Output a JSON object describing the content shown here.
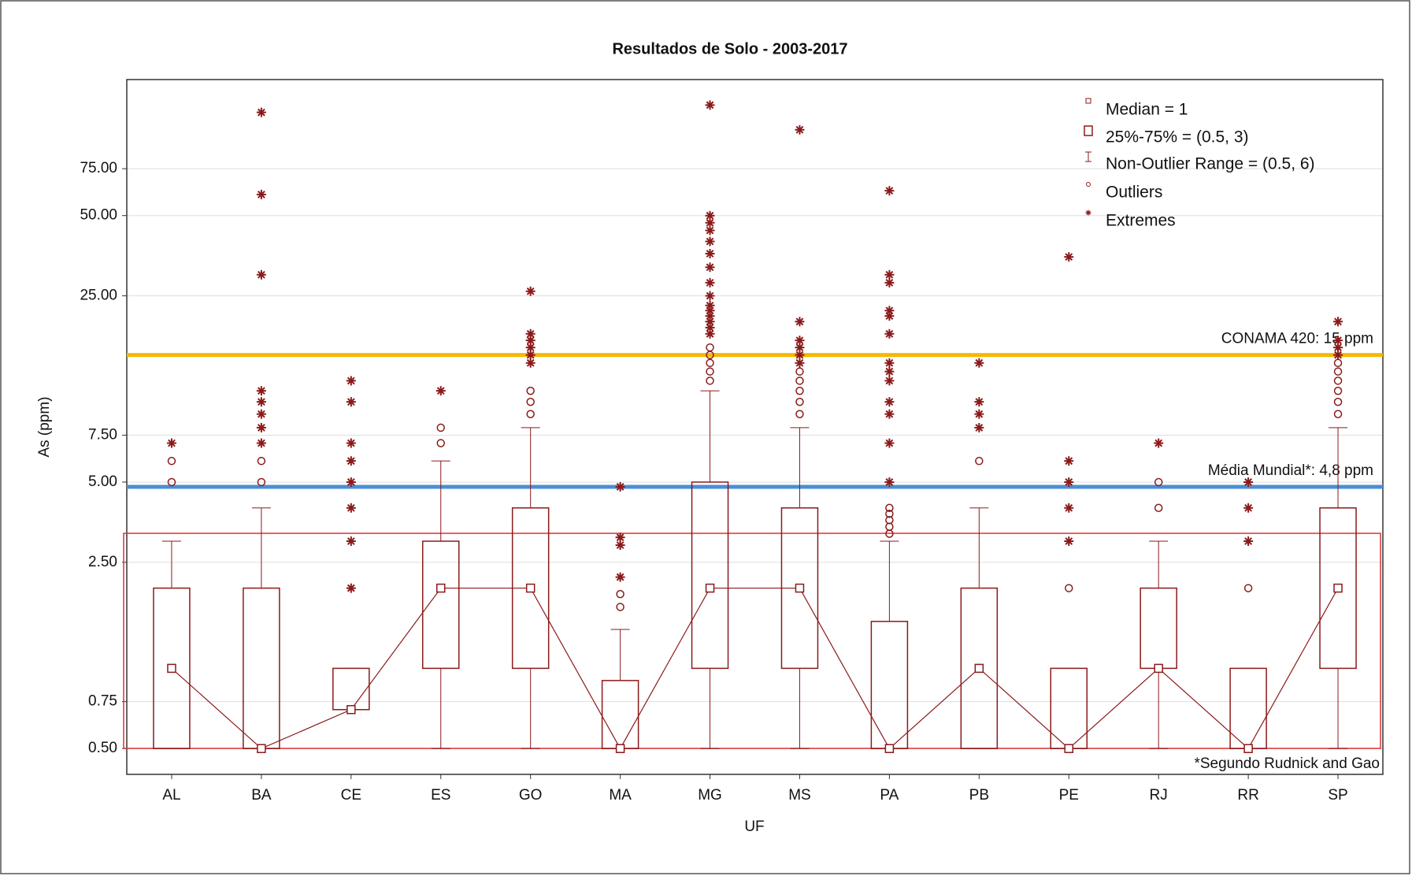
{
  "chart_data": {
    "type": "box",
    "title": "Resultados de Solo - 2003-2017",
    "x_label": "UF",
    "y_label": "As (ppm)",
    "log_y": true,
    "grid": true,
    "color": "#8b1a1a",
    "ylim": [
      0.4,
      162
    ],
    "yticks": [
      {
        "value": 0.5,
        "label": "0.50"
      },
      {
        "value": 0.75,
        "label": "0.75"
      },
      {
        "value": 2.5,
        "label": "2.50"
      },
      {
        "value": 5,
        "label": "5.00"
      },
      {
        "value": 7.5,
        "label": "7.50"
      },
      {
        "value": 25,
        "label": "25.00"
      },
      {
        "value": 50,
        "label": "50.00"
      },
      {
        "value": 75,
        "label": "75.00"
      }
    ],
    "categories": [
      "AL",
      "BA",
      "CE",
      "ES",
      "GO",
      "MA",
      "MG",
      "MS",
      "PA",
      "PB",
      "PE",
      "RJ",
      "RR",
      "SP"
    ],
    "boxes": [
      {
        "median": 1,
        "q1": 0.5,
        "q3": 2,
        "whisker_low": 0.5,
        "whisker_high": 3,
        "outliers": [
          5,
          6
        ],
        "extremes": [
          7
        ]
      },
      {
        "median": 0.5,
        "q1": 0.5,
        "q3": 2,
        "whisker_low": 0.5,
        "whisker_high": 4,
        "outliers": [
          5,
          6
        ],
        "extremes": [
          7,
          8,
          9,
          10,
          11,
          30,
          60,
          122
        ]
      },
      {
        "median": 0.7,
        "q1": 0.7,
        "q3": 1,
        "whisker_low": 0.7,
        "whisker_high": 1,
        "outliers": [],
        "extremes": [
          2,
          3,
          4,
          5,
          6,
          7,
          10,
          12
        ]
      },
      {
        "median": 2,
        "q1": 1,
        "q3": 3,
        "whisker_low": 0.5,
        "whisker_high": 6,
        "outliers": [
          7,
          8
        ],
        "extremes": [
          11
        ]
      },
      {
        "median": 2,
        "q1": 1,
        "q3": 4,
        "whisker_low": 0.5,
        "whisker_high": 8,
        "outliers": [
          9,
          10,
          11
        ],
        "extremes": [
          14,
          15,
          16,
          17,
          18,
          26
        ]
      },
      {
        "median": 0.5,
        "q1": 0.5,
        "q3": 0.9,
        "whisker_low": 0.5,
        "whisker_high": 1.4,
        "outliers": [
          1.7,
          1.9
        ],
        "extremes": [
          2.2,
          2.9,
          3.1,
          4.8
        ]
      },
      {
        "median": 2,
        "q1": 1,
        "q3": 5,
        "whisker_low": 0.5,
        "whisker_high": 11,
        "outliers": [
          12,
          13,
          14,
          15,
          16
        ],
        "extremes": [
          18,
          19,
          20,
          21,
          22,
          23,
          25,
          28,
          32,
          36,
          40,
          44,
          47,
          50,
          130
        ]
      },
      {
        "median": 2,
        "q1": 1,
        "q3": 4,
        "whisker_low": 0.5,
        "whisker_high": 8,
        "outliers": [
          9,
          10,
          11,
          12,
          13
        ],
        "extremes": [
          14,
          15,
          16,
          17,
          20,
          105
        ]
      },
      {
        "median": 0.5,
        "q1": 0.5,
        "q3": 1.5,
        "whisker_low": 0.5,
        "whisker_high": 3,
        "outliers": [
          3.2,
          3.4,
          3.6,
          3.8,
          4
        ],
        "extremes": [
          5,
          7,
          9,
          10,
          12,
          13,
          14,
          18,
          21,
          22,
          28,
          30,
          62
        ]
      },
      {
        "median": 1,
        "q1": 0.5,
        "q3": 2,
        "whisker_low": 0.5,
        "whisker_high": 4,
        "outliers": [
          6
        ],
        "extremes": [
          8,
          9,
          10,
          14
        ]
      },
      {
        "median": 0.5,
        "q1": 0.5,
        "q3": 1,
        "whisker_low": 0.5,
        "whisker_high": 1,
        "outliers": [
          2
        ],
        "extremes": [
          3,
          4,
          5,
          6,
          35
        ]
      },
      {
        "median": 1,
        "q1": 1,
        "q3": 2,
        "whisker_low": 0.5,
        "whisker_high": 3,
        "outliers": [
          4,
          5
        ],
        "extremes": [
          7
        ]
      },
      {
        "median": 0.5,
        "q1": 0.5,
        "q3": 1,
        "whisker_low": 0.5,
        "whisker_high": 1,
        "outliers": [
          2
        ],
        "extremes": [
          3,
          4,
          5
        ]
      },
      {
        "median": 2,
        "q1": 1,
        "q3": 4,
        "whisker_low": 0.5,
        "whisker_high": 8,
        "outliers": [
          9,
          10,
          11,
          12,
          13,
          14
        ],
        "extremes": [
          15,
          16,
          17,
          20
        ]
      }
    ],
    "reference_lines": [
      {
        "value": 15,
        "label": "CONAMA 420: 15 ppm",
        "color": "#f5b800"
      },
      {
        "value": 4.8,
        "label": "Média Mundial*: 4,8 ppm",
        "color": "#4a8fd6"
      }
    ],
    "legend": [
      "Median = 1",
      "25%-75%     = (0.5, 3)",
      "Non-Outlier Range     = (0.5, 6)",
      "Outliers",
      "Extremes"
    ],
    "footnote": "*Segundo Rudnick and Gao"
  }
}
